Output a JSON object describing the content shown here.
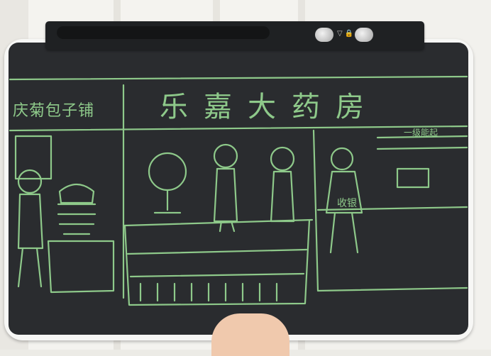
{
  "scene": {
    "shop_sign": "庆菊包子铺",
    "pharmacy_sign": "乐嘉大药房",
    "cashier_label": "收银",
    "queue_sign": "一级能起"
  },
  "device": {
    "ink_color": "#8ec98a",
    "screen_color": "#2a2c2f",
    "frame_color": "#f7f7f5",
    "button_glyph": "▽ 🔒"
  },
  "icons": {
    "lock_button": "lock-icon",
    "erase_button": "erase-icon"
  }
}
